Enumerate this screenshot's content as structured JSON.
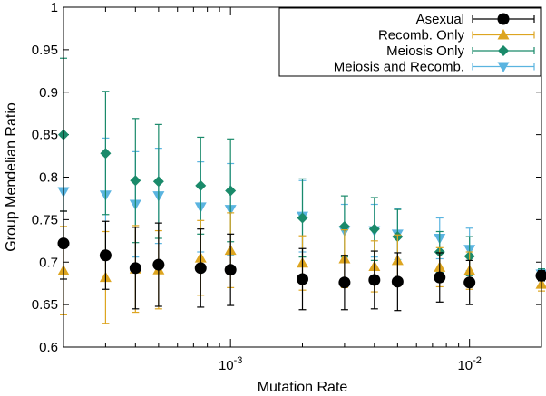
{
  "chart_data": {
    "type": "scatter",
    "title": "",
    "xlabel": "Mutation Rate",
    "ylabel": "Group Mendelian Ratio",
    "xscale": "log",
    "xlim": [
      0.0002,
      0.02
    ],
    "ylim": [
      0.6,
      1.0
    ],
    "yticks": [
      0.6,
      0.65,
      0.7,
      0.75,
      0.8,
      0.85,
      0.9,
      0.95,
      1.0
    ],
    "ytick_labels": [
      "0.6",
      "0.65",
      "0.7",
      "0.75",
      "0.8",
      "0.85",
      "0.9",
      "0.95",
      "1"
    ],
    "xticks": [
      {
        "value": 0.001,
        "base": "10",
        "exp": "-3"
      },
      {
        "value": 0.01,
        "base": "10",
        "exp": "-2"
      }
    ],
    "legend_position": "top-right",
    "series": [
      {
        "name": "Asexual",
        "marker": "circle",
        "color": "#000000",
        "points": [
          {
            "x": 0.0002,
            "y": 0.722,
            "lo": 0.68,
            "hi": 0.76
          },
          {
            "x": 0.0003,
            "y": 0.708,
            "lo": 0.668,
            "hi": 0.748
          },
          {
            "x": 0.0004,
            "y": 0.693,
            "lo": 0.645,
            "hi": 0.741
          },
          {
            "x": 0.0005,
            "y": 0.697,
            "lo": 0.648,
            "hi": 0.746
          },
          {
            "x": 0.00075,
            "y": 0.693,
            "lo": 0.647,
            "hi": 0.739
          },
          {
            "x": 0.001,
            "y": 0.691,
            "lo": 0.649,
            "hi": 0.733
          },
          {
            "x": 0.002,
            "y": 0.68,
            "lo": 0.644,
            "hi": 0.716
          },
          {
            "x": 0.003,
            "y": 0.676,
            "lo": 0.644,
            "hi": 0.708
          },
          {
            "x": 0.004,
            "y": 0.679,
            "lo": 0.645,
            "hi": 0.713
          },
          {
            "x": 0.005,
            "y": 0.677,
            "lo": 0.643,
            "hi": 0.711
          },
          {
            "x": 0.0075,
            "y": 0.682,
            "lo": 0.653,
            "hi": 0.711
          },
          {
            "x": 0.01,
            "y": 0.676,
            "lo": 0.65,
            "hi": 0.702
          },
          {
            "x": 0.02,
            "y": 0.684,
            "lo": 0.678,
            "hi": 0.69
          }
        ]
      },
      {
        "name": "Recomb. Only",
        "marker": "triangle-up",
        "color": "#dda520",
        "points": [
          {
            "x": 0.0002,
            "y": 0.69,
            "lo": 0.638,
            "hi": 0.742
          },
          {
            "x": 0.0003,
            "y": 0.682,
            "lo": 0.628,
            "hi": 0.736
          },
          {
            "x": 0.0004,
            "y": 0.692,
            "lo": 0.641,
            "hi": 0.743
          },
          {
            "x": 0.0005,
            "y": 0.691,
            "lo": 0.645,
            "hi": 0.737
          },
          {
            "x": 0.00075,
            "y": 0.705,
            "lo": 0.661,
            "hi": 0.749
          },
          {
            "x": 0.001,
            "y": 0.714,
            "lo": 0.67,
            "hi": 0.758
          },
          {
            "x": 0.002,
            "y": 0.699,
            "lo": 0.667,
            "hi": 0.731
          },
          {
            "x": 0.003,
            "y": 0.704,
            "lo": 0.67,
            "hi": 0.738
          },
          {
            "x": 0.004,
            "y": 0.695,
            "lo": 0.665,
            "hi": 0.725
          },
          {
            "x": 0.005,
            "y": 0.702,
            "lo": 0.672,
            "hi": 0.732
          },
          {
            "x": 0.0075,
            "y": 0.694,
            "lo": 0.671,
            "hi": 0.717
          },
          {
            "x": 0.01,
            "y": 0.69,
            "lo": 0.668,
            "hi": 0.712
          },
          {
            "x": 0.02,
            "y": 0.674,
            "lo": 0.666,
            "hi": 0.682
          }
        ]
      },
      {
        "name": "Meiosis Only",
        "marker": "diamond",
        "color": "#1a8a6a",
        "points": [
          {
            "x": 0.0002,
            "y": 0.85,
            "lo": 0.76,
            "hi": 0.94
          },
          {
            "x": 0.0003,
            "y": 0.828,
            "lo": 0.756,
            "hi": 0.901
          },
          {
            "x": 0.0004,
            "y": 0.796,
            "lo": 0.723,
            "hi": 0.869
          },
          {
            "x": 0.0005,
            "y": 0.795,
            "lo": 0.728,
            "hi": 0.862
          },
          {
            "x": 0.00075,
            "y": 0.79,
            "lo": 0.733,
            "hi": 0.847
          },
          {
            "x": 0.001,
            "y": 0.784,
            "lo": 0.724,
            "hi": 0.845
          },
          {
            "x": 0.002,
            "y": 0.752,
            "lo": 0.706,
            "hi": 0.798
          },
          {
            "x": 0.003,
            "y": 0.742,
            "lo": 0.706,
            "hi": 0.778
          },
          {
            "x": 0.004,
            "y": 0.739,
            "lo": 0.702,
            "hi": 0.776
          },
          {
            "x": 0.005,
            "y": 0.73,
            "lo": 0.698,
            "hi": 0.762
          },
          {
            "x": 0.0075,
            "y": 0.712,
            "lo": 0.688,
            "hi": 0.736
          },
          {
            "x": 0.01,
            "y": 0.707,
            "lo": 0.684,
            "hi": 0.73
          },
          {
            "x": 0.02,
            "y": 0.685,
            "lo": 0.678,
            "hi": 0.692
          }
        ]
      },
      {
        "name": "Meiosis and Recomb.",
        "marker": "triangle-down",
        "color": "#5ab4e0",
        "points": [
          {
            "x": 0.0002,
            "y": 0.783,
            "lo": 0.718,
            "hi": 0.848
          },
          {
            "x": 0.0003,
            "y": 0.779,
            "lo": 0.712,
            "hi": 0.846
          },
          {
            "x": 0.0004,
            "y": 0.768,
            "lo": 0.706,
            "hi": 0.83
          },
          {
            "x": 0.0005,
            "y": 0.778,
            "lo": 0.722,
            "hi": 0.834
          },
          {
            "x": 0.00075,
            "y": 0.765,
            "lo": 0.712,
            "hi": 0.818
          },
          {
            "x": 0.001,
            "y": 0.762,
            "lo": 0.708,
            "hi": 0.816
          },
          {
            "x": 0.002,
            "y": 0.754,
            "lo": 0.712,
            "hi": 0.796
          },
          {
            "x": 0.003,
            "y": 0.737,
            "lo": 0.706,
            "hi": 0.768
          },
          {
            "x": 0.004,
            "y": 0.737,
            "lo": 0.706,
            "hi": 0.768
          },
          {
            "x": 0.005,
            "y": 0.733,
            "lo": 0.703,
            "hi": 0.763
          },
          {
            "x": 0.0075,
            "y": 0.728,
            "lo": 0.704,
            "hi": 0.752
          },
          {
            "x": 0.01,
            "y": 0.715,
            "lo": 0.69,
            "hi": 0.74
          },
          {
            "x": 0.02,
            "y": 0.686,
            "lo": 0.68,
            "hi": 0.692
          }
        ]
      }
    ]
  }
}
